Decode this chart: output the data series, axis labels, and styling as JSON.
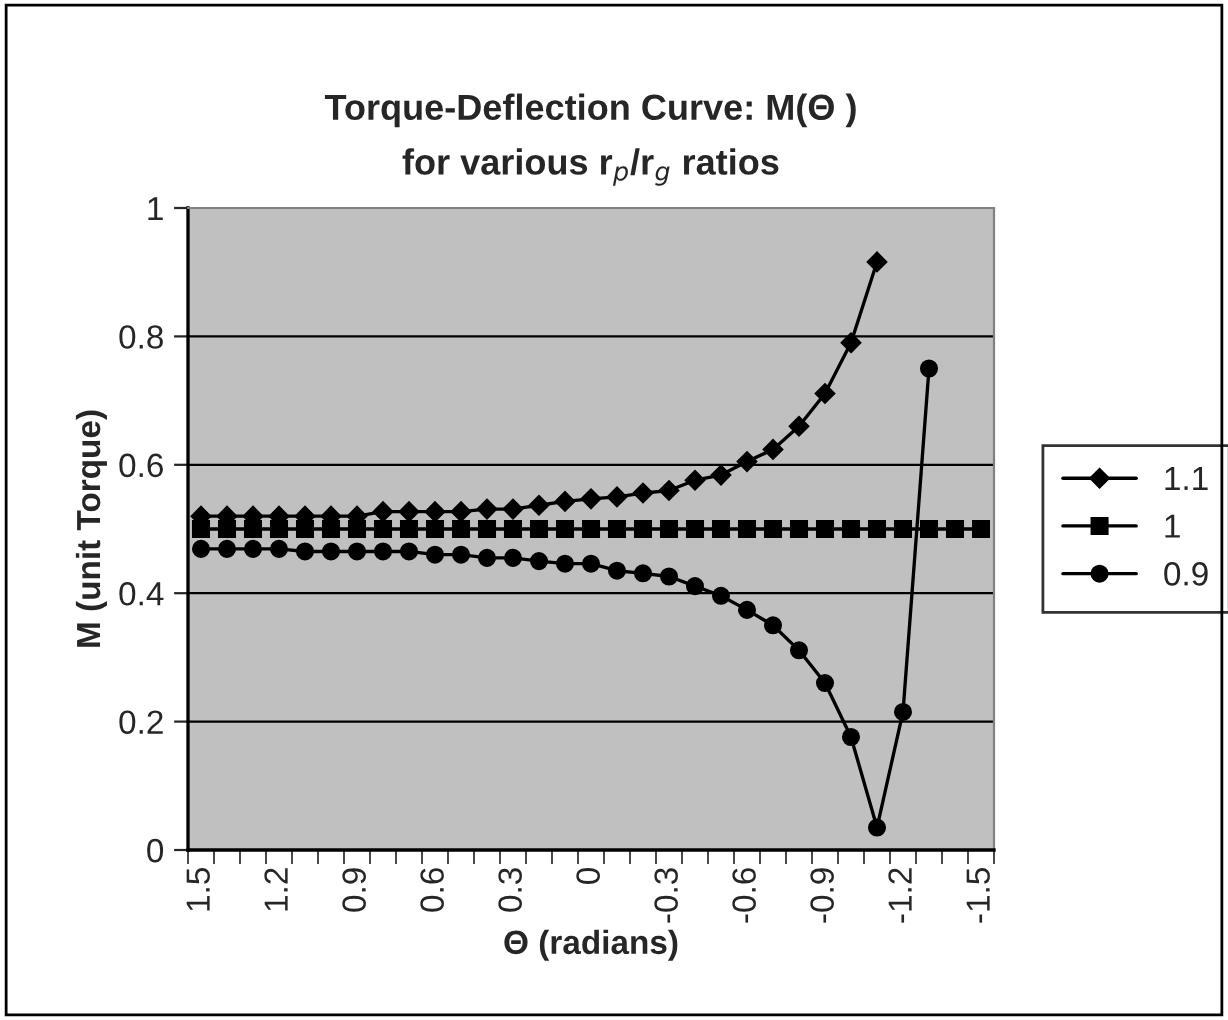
{
  "chart_data": {
    "type": "line",
    "title": "Torque-Deflection Curve: M(Θ )\nfor various r$_{p}$/r$_{g}$ ratios",
    "xlabel": "Θ (radians)",
    "ylabel": "M (unit Torque)",
    "categories": [
      "1.5",
      null,
      null,
      "1.2",
      null,
      null,
      "0.9",
      null,
      null,
      "0.6",
      null,
      null,
      "0.3",
      null,
      null,
      "0",
      null,
      null,
      "-0.3",
      null,
      null,
      "-0.6",
      null,
      null,
      "-0.9",
      null,
      null,
      "-1.2",
      null,
      null,
      "-1.5"
    ],
    "series": [
      {
        "name": "1.1",
        "color": "#000000",
        "marker": "diamond",
        "values": [
          0.52,
          0.52,
          0.52,
          0.52,
          0.52,
          0.52,
          0.52,
          0.527,
          0.527,
          0.527,
          0.527,
          0.531,
          0.531,
          0.537,
          0.543,
          0.547,
          0.55,
          0.556,
          0.56,
          0.576,
          0.584,
          0.605,
          0.624,
          0.66,
          0.711,
          0.79,
          0.916,
          null,
          null,
          null,
          null
        ]
      },
      {
        "name": "1",
        "color": "#000000",
        "marker": "square",
        "values": [
          0.5,
          0.5,
          0.5,
          0.5,
          0.5,
          0.5,
          0.5,
          0.5,
          0.5,
          0.5,
          0.5,
          0.5,
          0.5,
          0.5,
          0.5,
          0.5,
          0.5,
          0.5,
          0.5,
          0.5,
          0.5,
          0.5,
          0.5,
          0.5,
          0.5,
          0.5,
          0.5,
          0.5,
          0.5,
          0.5,
          0.5
        ]
      },
      {
        "name": "0.9",
        "color": "#000000",
        "marker": "circle",
        "values": [
          0.469,
          0.469,
          0.469,
          0.469,
          0.465,
          0.465,
          0.465,
          0.465,
          0.465,
          0.46,
          0.46,
          0.455,
          0.455,
          0.45,
          0.446,
          0.446,
          0.435,
          0.431,
          0.426,
          0.411,
          0.396,
          0.374,
          0.35,
          0.311,
          0.26,
          0.176,
          0.035,
          0.215,
          0.75,
          null,
          null
        ]
      }
    ],
    "ylim": [
      0,
      1
    ],
    "yticks": [
      0,
      0.2,
      0.4,
      0.6,
      0.8,
      1
    ],
    "grid": "y",
    "legend": "right"
  }
}
